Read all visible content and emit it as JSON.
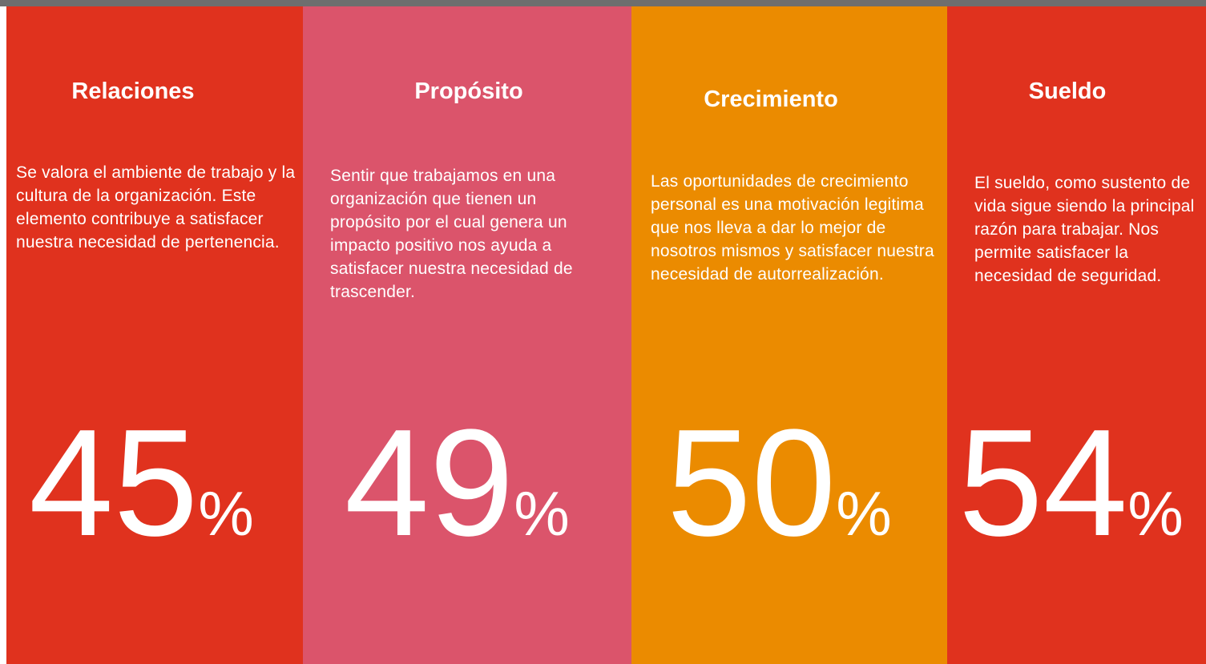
{
  "columns": [
    {
      "title": "Relaciones",
      "text": "Se valora el ambiente de trabajo y la cultura de la organización. Este elemento contribuye a satisfacer nuestra necesidad de pertenencia.",
      "value": 45,
      "unit": "%"
    },
    {
      "title": "Propósito",
      "text": "Sentir que trabajamos en una organización que tienen un propósito por el cual genera un impacto positivo nos ayuda a satisfacer nuestra necesidad de trascender.",
      "value": 49,
      "unit": "%"
    },
    {
      "title": "Crecimiento",
      "text": "Las oportunidades de crecimiento personal es una motivación legitima que nos lleva a dar lo mejor de nosotros mismos y satisfacer nuestra necesidad de autorrealización.",
      "value": 50,
      "unit": "%"
    },
    {
      "title": "Sueldo",
      "text": "El sueldo, como sustento de vida sigue siendo la principal razón para trabajar. Nos permite satisfacer la necesidad de seguridad.",
      "value": 54,
      "unit": "%"
    }
  ]
}
